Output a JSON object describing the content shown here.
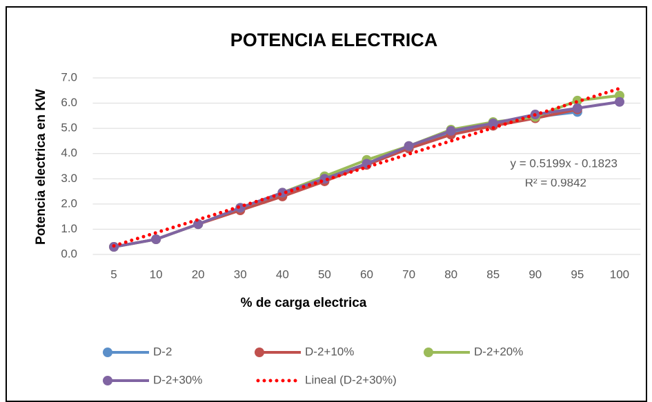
{
  "chart_data": {
    "type": "line",
    "title": "POTENCIA ELECTRICA",
    "x_label": "% de carga electrica",
    "y_label": "Potencia electrica en KW",
    "categories": [
      "5",
      "10",
      "20",
      "30",
      "40",
      "50",
      "60",
      "70",
      "80",
      "85",
      "90",
      "95",
      "100"
    ],
    "series": [
      {
        "name": "D-2",
        "color": "#5b8fc9",
        "values": [
          0.3,
          0.6,
          1.2,
          1.8,
          2.4,
          3.0,
          3.6,
          4.25,
          4.8,
          5.15,
          5.45,
          5.65,
          null
        ]
      },
      {
        "name": "D-2+10%",
        "color": "#c0504d",
        "values": [
          0.3,
          0.6,
          1.2,
          1.75,
          2.3,
          2.9,
          3.55,
          4.2,
          4.75,
          5.1,
          5.4,
          5.75,
          null
        ]
      },
      {
        "name": "D-2+20%",
        "color": "#9bbb59",
        "values": [
          0.3,
          0.6,
          1.2,
          1.85,
          2.45,
          3.1,
          3.75,
          4.3,
          4.95,
          5.25,
          5.45,
          6.1,
          6.3
        ]
      },
      {
        "name": "D-2+30%",
        "color": "#8064a2",
        "values": [
          0.3,
          0.6,
          1.2,
          1.85,
          2.45,
          3.0,
          3.6,
          4.3,
          4.9,
          5.2,
          5.55,
          5.8,
          6.05
        ]
      },
      {
        "name": "Lineal (D-2+30%)",
        "color": "#ff0000",
        "dotted": true,
        "values": [
          0.34,
          0.86,
          1.38,
          1.9,
          2.42,
          2.94,
          3.46,
          3.98,
          4.5,
          5.02,
          5.54,
          6.06,
          6.58
        ]
      }
    ],
    "annotations": [
      "y = 0.5199x - 0.1823",
      "R² = 0.9842"
    ],
    "ylim": [
      0,
      7
    ],
    "yticks": [
      {
        "value": 0,
        "label": "0.0"
      },
      {
        "value": 1,
        "label": "1.0"
      },
      {
        "value": 2,
        "label": "2.0"
      },
      {
        "value": 3,
        "label": "3.0"
      },
      {
        "value": 4,
        "label": "4.0"
      },
      {
        "value": 5,
        "label": "5.0"
      },
      {
        "value": 6,
        "label": "6.0"
      },
      {
        "value": 7,
        "label": "7.0"
      }
    ],
    "grid": true,
    "legend": "bottom"
  }
}
